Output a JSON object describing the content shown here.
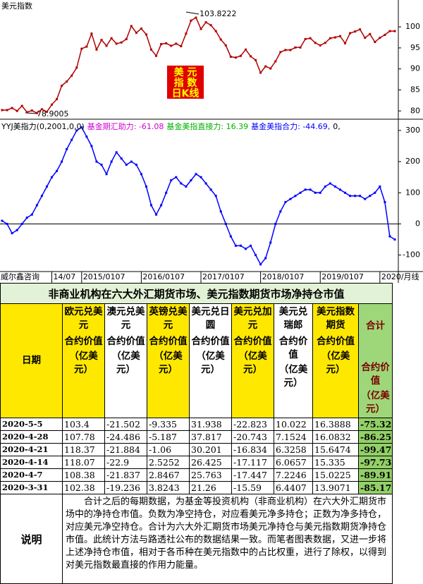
{
  "chart_data": [
    {
      "type": "line",
      "title": "美元指数",
      "color": "#b00000",
      "values": [
        80.2,
        80.2,
        80.7,
        80.0,
        81.2,
        79.7,
        80.1,
        79.5,
        80.4,
        79.8,
        81.5,
        82.8,
        86.0,
        87.0,
        88.4,
        90.3,
        94.8,
        95.3,
        98.4,
        94.6,
        96.9,
        95.5,
        97.3,
        96.0,
        96.3,
        97.1,
        100.2,
        98.6,
        99.6,
        98.2,
        94.6,
        93.1,
        95.9,
        96.1,
        95.5,
        96.0,
        95.4,
        98.4,
        101.5,
        102.2,
        99.5,
        101.1,
        100.4,
        99.0,
        97.0,
        95.6,
        92.9,
        92.7,
        93.1,
        94.6,
        93.0,
        92.1,
        89.1,
        90.6,
        90.1,
        91.8,
        94.0,
        94.5,
        94.5,
        95.1,
        95.1,
        97.1,
        97.3,
        96.2,
        95.6,
        96.2,
        97.3,
        97.5,
        97.8,
        96.1,
        98.5,
        98.9,
        99.4,
        97.4,
        98.3,
        96.4,
        97.4,
        98.1,
        99.0,
        99.0
      ],
      "ylim": [
        78.2,
        106.4
      ],
      "yticks": [
        80,
        85,
        90,
        95,
        100
      ],
      "annotations": [
        "103.8222",
        "78.9005"
      ],
      "stamp": [
        "美 元",
        "指 数",
        "日K线"
      ]
    },
    {
      "type": "line",
      "title": "YYJ美指力(0,2001,0,0)",
      "color": "#0000ff",
      "labels": [
        {
          "text": "基金期汇助力: -61.08",
          "color": "#d000d0"
        },
        {
          "text": "基金美指直接力: 16.39",
          "color": "#00b000"
        },
        {
          "text": "基金美指合力: -44.69,",
          "color": "#0000ff"
        },
        {
          "text": "0,",
          "color": "#000000"
        }
      ],
      "source": "威尔鑫咨询",
      "categories": [
        null,
        null,
        null,
        null,
        null,
        null,
        null,
        null,
        null,
        null,
        "14/07",
        null,
        null,
        null,
        null,
        null,
        "2015/0107",
        null,
        null,
        null,
        null,
        null,
        null,
        null,
        null,
        null,
        null,
        null,
        "2016/0107",
        null,
        null,
        null,
        null,
        null,
        null,
        null,
        null,
        null,
        null,
        null,
        "2017/0107",
        null,
        null,
        null,
        null,
        null,
        null,
        null,
        null,
        null,
        null,
        null,
        "2018/0107",
        null,
        null,
        null,
        null,
        null,
        null,
        null,
        null,
        null,
        null,
        null,
        "2019/0107",
        null,
        null,
        null,
        null,
        null,
        null,
        null,
        null,
        null,
        null,
        null,
        "2020/月线",
        null,
        null,
        null
      ],
      "values": [
        10,
        0,
        -30,
        -20,
        0,
        20,
        30,
        60,
        90,
        120,
        150,
        170,
        200,
        240,
        270,
        300,
        310,
        280,
        250,
        200,
        190,
        160,
        200,
        230,
        210,
        190,
        200,
        190,
        160,
        120,
        60,
        30,
        60,
        100,
        140,
        150,
        130,
        120,
        140,
        160,
        150,
        130,
        110,
        90,
        40,
        0,
        -40,
        -70,
        -70,
        -80,
        -70,
        -100,
        -130,
        -110,
        -60,
        0,
        40,
        70,
        80,
        90,
        100,
        110,
        110,
        100,
        100,
        120,
        130,
        120,
        110,
        100,
        90,
        90,
        90,
        80,
        90,
        100,
        120,
        70,
        -40,
        -50
      ],
      "ylim": [
        -153,
        334
      ],
      "yticks": [
        -100,
        0,
        100,
        200,
        300
      ],
      "zero_line": true
    }
  ],
  "table": {
    "title": "非商业机构在六大外汇期货市场、美元指数期货市场净持仓市值",
    "date_header": "日期",
    "columns": [
      {
        "name": "欧元兑美元",
        "measure": "合约价值",
        "unit": "（亿美元）"
      },
      {
        "name": "澳元兑美元",
        "measure": "合约价值",
        "unit": "（亿美元）"
      },
      {
        "name": "英镑兑美元",
        "measure": "合约价值",
        "unit": "（亿美元）"
      },
      {
        "name": "美元兑日圆",
        "measure": "合约价值",
        "unit": "（亿美元）"
      },
      {
        "name": "美元兑加元",
        "measure": "合约价值",
        "unit": "（亿美元）"
      },
      {
        "name": "美元兑瑞郎",
        "measure": "合约价值",
        "unit": "（亿美元）"
      },
      {
        "name": "美元指数期货",
        "measure": "合约价值",
        "unit": "（亿美元）"
      },
      {
        "name": "合计",
        "measure": "合约价值",
        "unit": "（亿美元）"
      }
    ],
    "rows": [
      [
        "2020-5-5",
        "103.4",
        "-21.502",
        "-9.335",
        "31.938",
        "-22.823",
        "10.022",
        "16.3888",
        "-75.32"
      ],
      [
        "2020-4-28",
        "107.78",
        "-24.486",
        "-5.187",
        "37.817",
        "-20.743",
        "7.1524",
        "16.0832",
        "-86.25"
      ],
      [
        "2020-4-21",
        "118.37",
        "-21.884",
        "-1.06",
        "30.201",
        "-16.834",
        "6.3258",
        "15.6474",
        "-99.47"
      ],
      [
        "2020-4-14",
        "118.07",
        "-22.9",
        "2.5252",
        "26.425",
        "-17.117",
        "6.0657",
        "15.335",
        "-97.73"
      ],
      [
        "2020-4-7",
        "108.38",
        "-21.837",
        "2.8467",
        "25.763",
        "-17.447",
        "7.2246",
        "15.0225",
        "-89.91"
      ],
      [
        "2020-3-31",
        "102.38",
        "-19.236",
        "3.8243",
        "21.26",
        "-15.59",
        "6.4407",
        "13.9071",
        "-85.17"
      ]
    ]
  },
  "note": {
    "label": "说明",
    "text": "合计之后的每期数据，为基金等投资机构（非商业机构）在六大外汇期货市场中的净持仓市值。负数为净空持仓，对应看美元净多持仓；正数为净多持仓，对应美元净空持仓。合计为六大外汇期货市场美元净持仓与美元指数期货净持仓市值。此统计方法与路透社公布的数据结果一致。而笔者图表数据，又进一步将上述净持仓市值，相对于各币种在美元指数中的占比权重，进行了除权，以得到对美元指数最直接的作用力能量。"
  }
}
